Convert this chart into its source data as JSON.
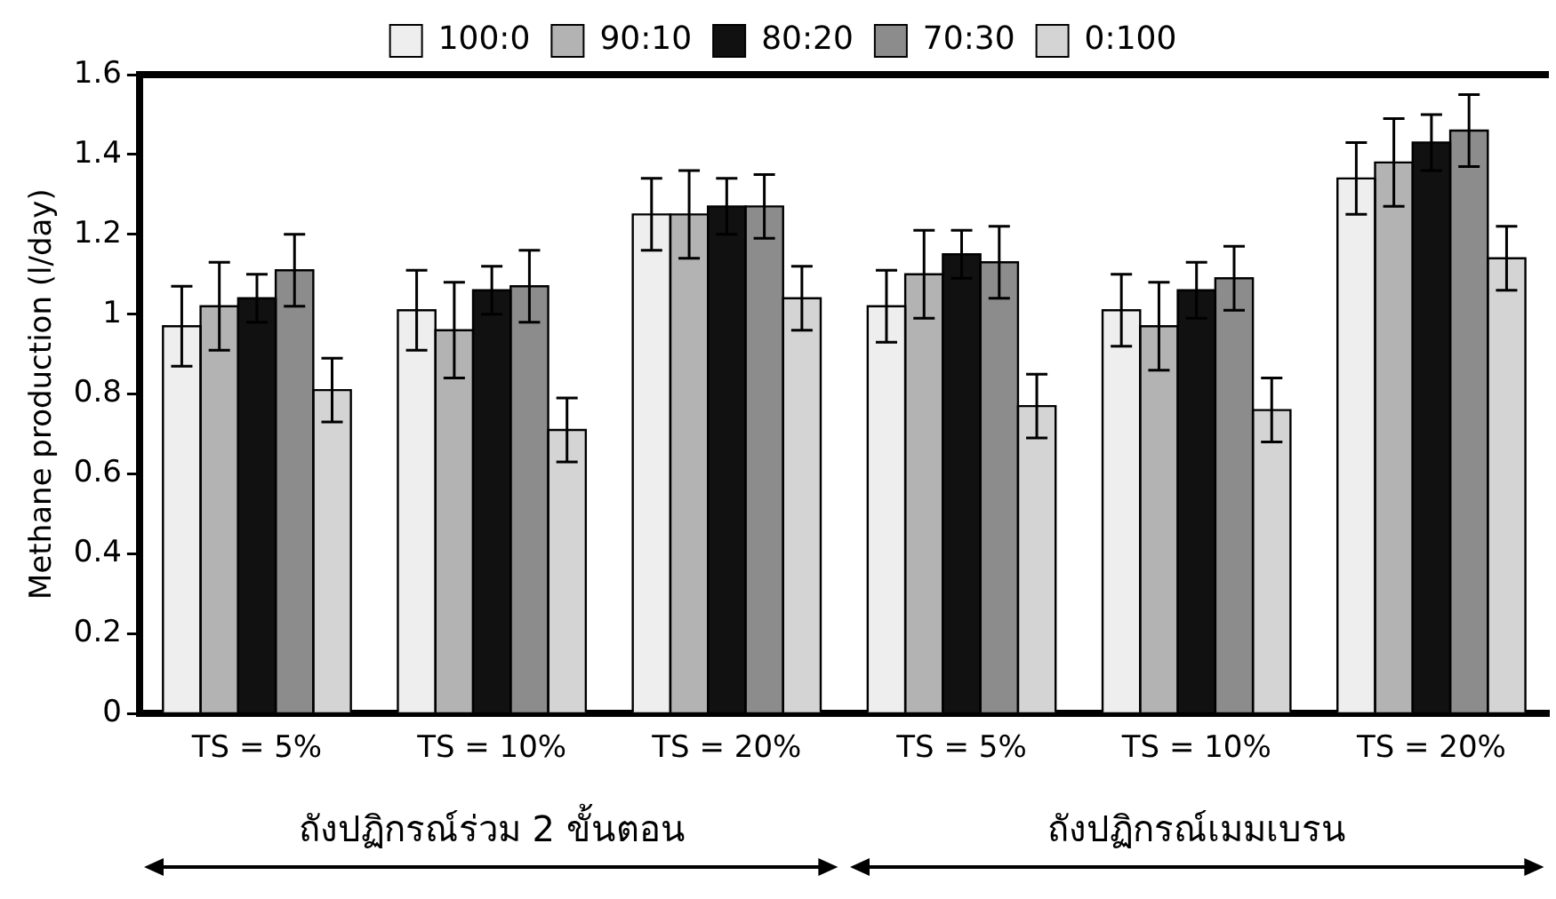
{
  "chart_data": {
    "type": "bar",
    "ylabel": "Methane production (l/day)",
    "categories": [
      "TS = 5%",
      "TS = 10%",
      "TS = 20%",
      "TS = 5%",
      "TS = 10%",
      "TS = 20%"
    ],
    "series": [
      {
        "name": "100:0",
        "color": "#eeeeee",
        "values": [
          0.97,
          1.01,
          1.25,
          1.02,
          1.01,
          1.34
        ],
        "errors": [
          0.1,
          0.1,
          0.09,
          0.09,
          0.09,
          0.09
        ]
      },
      {
        "name": "90:10",
        "color": "#b3b3b3",
        "values": [
          1.02,
          0.96,
          1.25,
          1.1,
          0.97,
          1.38
        ],
        "errors": [
          0.11,
          0.12,
          0.11,
          0.11,
          0.11,
          0.11
        ]
      },
      {
        "name": "80:20",
        "color": "#111111",
        "values": [
          1.04,
          1.06,
          1.27,
          1.15,
          1.06,
          1.43
        ],
        "errors": [
          0.06,
          0.06,
          0.07,
          0.06,
          0.07,
          0.07
        ]
      },
      {
        "name": "70:30",
        "color": "#8c8c8c",
        "values": [
          1.11,
          1.07,
          1.27,
          1.13,
          1.09,
          1.46
        ],
        "errors": [
          0.09,
          0.09,
          0.08,
          0.09,
          0.08,
          0.09
        ]
      },
      {
        "name": "0:100",
        "color": "#d4d4d4",
        "values": [
          0.81,
          0.71,
          1.04,
          0.77,
          0.76,
          1.14
        ],
        "errors": [
          0.08,
          0.08,
          0.08,
          0.08,
          0.08,
          0.08
        ]
      }
    ],
    "ylim": [
      0,
      1.6
    ],
    "yticks": [
      0,
      0.2,
      0.4,
      0.6,
      0.8,
      1,
      1.2,
      1.4,
      1.6
    ],
    "grid": false,
    "legend": "top",
    "annotations": [
      "ถังปฏิกรณ์ร่วม 2 ขั้นตอน",
      "ถังปฏิกรณ์เมมเบรน"
    ]
  }
}
